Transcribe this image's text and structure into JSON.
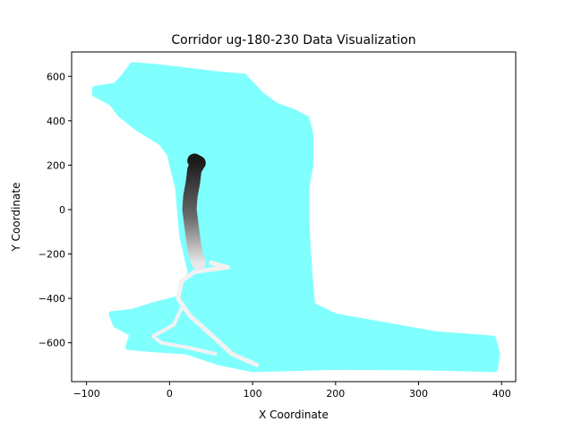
{
  "chart_data": {
    "type": "scatter",
    "title": "Corridor ug-180-230 Data Visualization",
    "xlabel": "X Coordinate",
    "ylabel": "Y Coordinate",
    "xlim": [
      -118,
      417
    ],
    "ylim": [
      -775,
      710
    ],
    "xticks": [
      -100,
      0,
      100,
      200,
      300,
      400
    ],
    "yticks": [
      -600,
      -400,
      -200,
      0,
      200,
      400,
      600
    ],
    "grid": false,
    "colors": {
      "corridor": "#80ffff",
      "path_light": "#f2f2f2",
      "path_dark": "#1a1a1a"
    },
    "corridor_region": [
      [
        -45,
        652
      ],
      [
        -20,
        645
      ],
      [
        20,
        628
      ],
      [
        60,
        610
      ],
      [
        90,
        600
      ],
      [
        110,
        520
      ],
      [
        128,
        470
      ],
      [
        150,
        440
      ],
      [
        165,
        410
      ],
      [
        170,
        340
      ],
      [
        170,
        200
      ],
      [
        165,
        100
      ],
      [
        165,
        -50
      ],
      [
        168,
        -250
      ],
      [
        172,
        -430
      ],
      [
        200,
        -480
      ],
      [
        260,
        -520
      ],
      [
        320,
        -560
      ],
      [
        390,
        -580
      ],
      [
        395,
        -650
      ],
      [
        392,
        -720
      ],
      [
        340,
        -715
      ],
      [
        300,
        -712
      ],
      [
        200,
        -710
      ],
      [
        100,
        -720
      ],
      [
        60,
        -690
      ],
      [
        20,
        -640
      ],
      [
        -20,
        -630
      ],
      [
        -50,
        -620
      ],
      [
        -45,
        -560
      ],
      [
        -65,
        -520
      ],
      [
        -70,
        -470
      ],
      [
        -45,
        -460
      ],
      [
        -20,
        -430
      ],
      [
        10,
        -400
      ],
      [
        20,
        -330
      ],
      [
        25,
        -280
      ],
      [
        20,
        -200
      ],
      [
        15,
        -120
      ],
      [
        12,
        0
      ],
      [
        10,
        100
      ],
      [
        5,
        170
      ],
      [
        0,
        250
      ],
      [
        -10,
        300
      ],
      [
        -40,
        370
      ],
      [
        -60,
        430
      ],
      [
        -70,
        480
      ],
      [
        -90,
        520
      ],
      [
        -90,
        545
      ],
      [
        -65,
        560
      ],
      [
        -55,
        600
      ]
    ],
    "path_light": [
      [
        50,
        -240
      ],
      [
        70,
        -260
      ],
      [
        30,
        -280
      ],
      [
        15,
        -320
      ],
      [
        10,
        -400
      ],
      [
        25,
        -480
      ],
      [
        55,
        -580
      ],
      [
        75,
        -650
      ],
      [
        105,
        -700
      ]
    ],
    "path_light_branch": [
      [
        15,
        -440
      ],
      [
        5,
        -520
      ],
      [
        -20,
        -570
      ],
      [
        -10,
        -600
      ],
      [
        20,
        -620
      ],
      [
        55,
        -650
      ]
    ],
    "path_dark": [
      [
        30,
        220
      ],
      [
        35,
        210
      ],
      [
        30,
        180
      ],
      [
        28,
        120
      ],
      [
        25,
        60
      ],
      [
        24,
        0
      ],
      [
        26,
        -60
      ],
      [
        28,
        -120
      ],
      [
        30,
        -170
      ],
      [
        32,
        -210
      ],
      [
        35,
        -240
      ]
    ]
  }
}
